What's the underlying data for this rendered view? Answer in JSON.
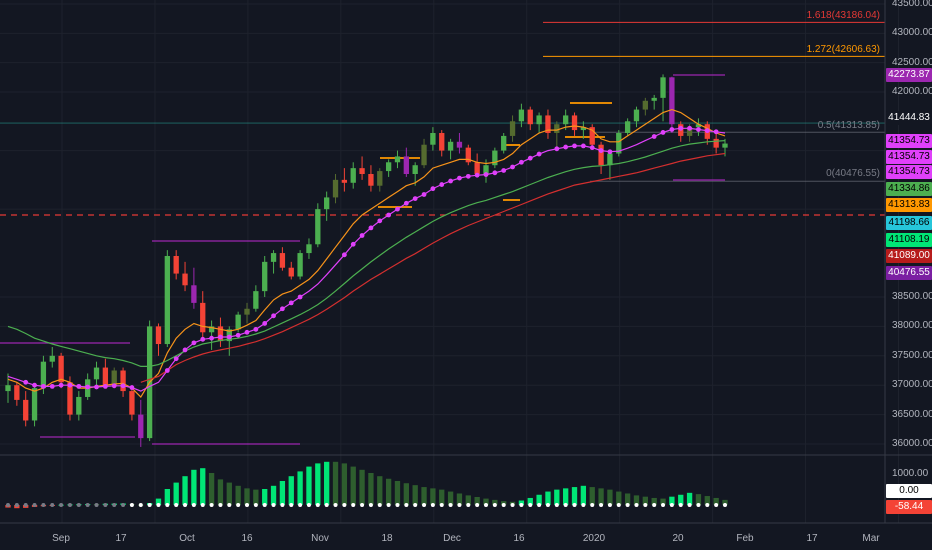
{
  "colors": {
    "background": "#131722",
    "up": "#4caf50",
    "down": "#f44336",
    "up_dim": "#556b2f",
    "ema_fast": "#f7931a",
    "ema_mid": "#e040fb",
    "ema_slow_green": "#4caf50",
    "ema_slow_red": "#d32f2f",
    "guide_magenta": "#9c27b0",
    "fib_red": "#e53935",
    "fib_orange": "#ff9800",
    "dash_red": "#e53935"
  },
  "chart_data": [
    {
      "type": "candlestick",
      "title": "",
      "ylim": [
        35800,
        43500
      ],
      "x_labels": [
        {
          "label": "Sep",
          "x": 0
        },
        {
          "label": "17",
          "x": 14
        },
        {
          "label": "Oct",
          "x": 28
        },
        {
          "label": "16",
          "x": 42
        },
        {
          "label": "Nov",
          "x": 56
        },
        {
          "label": "18",
          "x": 70
        },
        {
          "label": "Dec",
          "x": 84
        },
        {
          "label": "16",
          "x": 98
        },
        {
          "label": "2020",
          "x": 112
        },
        {
          "label": "20",
          "x": 126
        },
        {
          "label": "Feb",
          "x": 140
        },
        {
          "label": "17",
          "x": 154
        },
        {
          "label": "Mar",
          "x": 168
        }
      ],
      "y_ticks": [
        36000,
        36500,
        37000,
        37500,
        38000,
        38500,
        40476.55,
        41089.0,
        41108.19,
        41198.66,
        41313.83,
        41334.86,
        41354.73,
        41444.83,
        42000,
        42273.87,
        42500,
        43000,
        43500
      ],
      "y_tick_labels": [
        "36000.00",
        "36500.00",
        "37000.00",
        "37500.00",
        "38000.00",
        "38500.00",
        "40476.55",
        "41089.00",
        "41108.19",
        "41198.66",
        "41313.83",
        "41334.86",
        "41354.73",
        "41444.83",
        "42000.00",
        "42273.87",
        "42500.00",
        "43000.00",
        "43500.00"
      ],
      "candles": [
        [
          36900,
          37200,
          36700,
          37000
        ],
        [
          37000,
          37050,
          36650,
          36750
        ],
        [
          36750,
          36900,
          36300,
          36400
        ],
        [
          36400,
          37000,
          36300,
          36950
        ],
        [
          36950,
          37500,
          36850,
          37400
        ],
        [
          37400,
          37650,
          37300,
          37500
        ],
        [
          37500,
          37550,
          36950,
          37050
        ],
        [
          37050,
          37150,
          36400,
          36500
        ],
        [
          36500,
          36900,
          36400,
          36800
        ],
        [
          36800,
          37200,
          36750,
          37100
        ],
        [
          37100,
          37400,
          37000,
          37300
        ],
        [
          37300,
          37450,
          36950,
          37000
        ],
        [
          37000,
          37300,
          36950,
          37250
        ],
        [
          37250,
          37300,
          36800,
          36900
        ],
        [
          36900,
          36950,
          36400,
          36500
        ],
        [
          36500,
          36750,
          35950,
          36100
        ],
        [
          36100,
          38100,
          36050,
          38000
        ],
        [
          38000,
          38050,
          37500,
          37700
        ],
        [
          37700,
          39300,
          37650,
          39200
        ],
        [
          39200,
          39300,
          38800,
          38900
        ],
        [
          38900,
          39100,
          38600,
          38700
        ],
        [
          38700,
          39000,
          38300,
          38400
        ],
        [
          38400,
          38600,
          37800,
          37900
        ],
        [
          37900,
          38100,
          37600,
          38000
        ],
        [
          38000,
          38150,
          37650,
          37750
        ],
        [
          37750,
          38000,
          37500,
          37950
        ],
        [
          37950,
          38250,
          37900,
          38200
        ],
        [
          38200,
          38400,
          38050,
          38300
        ],
        [
          38300,
          38700,
          38250,
          38600
        ],
        [
          38600,
          39200,
          38500,
          39100
        ],
        [
          39100,
          39300,
          38900,
          39250
        ],
        [
          39250,
          39350,
          38950,
          39000
        ],
        [
          39000,
          39100,
          38800,
          38850
        ],
        [
          38850,
          39300,
          38800,
          39250
        ],
        [
          39250,
          39500,
          39150,
          39400
        ],
        [
          39400,
          40100,
          39350,
          40000
        ],
        [
          40000,
          40300,
          39800,
          40200
        ],
        [
          40200,
          40600,
          40100,
          40500
        ],
        [
          40500,
          40700,
          40300,
          40450
        ],
        [
          40450,
          40800,
          40350,
          40700
        ],
        [
          40700,
          40900,
          40500,
          40600
        ],
        [
          40600,
          40750,
          40300,
          40400
        ],
        [
          40400,
          40700,
          40300,
          40650
        ],
        [
          40650,
          40850,
          40550,
          40800
        ],
        [
          40800,
          41000,
          40700,
          40900
        ],
        [
          40900,
          41050,
          40550,
          40600
        ],
        [
          40600,
          40800,
          40400,
          40750
        ],
        [
          40750,
          41200,
          40700,
          41100
        ],
        [
          41100,
          41400,
          41000,
          41300
        ],
        [
          41300,
          41350,
          40900,
          41000
        ],
        [
          41000,
          41200,
          40850,
          41150
        ],
        [
          41150,
          41300,
          40950,
          41050
        ],
        [
          41050,
          41100,
          40750,
          40800
        ],
        [
          40800,
          40950,
          40550,
          40600
        ],
        [
          40600,
          40850,
          40450,
          40750
        ],
        [
          40750,
          41050,
          40700,
          41000
        ],
        [
          41000,
          41300,
          40950,
          41250
        ],
        [
          41250,
          41600,
          41150,
          41500
        ],
        [
          41500,
          41800,
          41400,
          41700
        ],
        [
          41700,
          41750,
          41350,
          41450
        ],
        [
          41450,
          41650,
          41300,
          41600
        ],
        [
          41600,
          41700,
          41200,
          41300
        ],
        [
          41300,
          41500,
          41000,
          41450
        ],
        [
          41450,
          41700,
          41350,
          41600
        ],
        [
          41600,
          41650,
          41250,
          41350
        ],
        [
          41350,
          41500,
          41200,
          41400
        ],
        [
          41400,
          41450,
          41050,
          41100
        ],
        [
          41100,
          41150,
          40600,
          40750
        ],
        [
          40750,
          41000,
          40500,
          40950
        ],
        [
          40950,
          41350,
          40900,
          41300
        ],
        [
          41300,
          41550,
          41250,
          41500
        ],
        [
          41500,
          41750,
          41400,
          41700
        ],
        [
          41700,
          41900,
          41600,
          41850
        ],
        [
          41850,
          41950,
          41700,
          41900
        ],
        [
          41900,
          42300,
          41500,
          42250
        ],
        [
          42250,
          42260,
          41300,
          41450
        ],
        [
          41450,
          41500,
          41150,
          41250
        ],
        [
          41250,
          41450,
          41150,
          41400
        ],
        [
          41400,
          41550,
          41250,
          41450
        ],
        [
          41450,
          41500,
          41100,
          41200
        ],
        [
          41200,
          41350,
          40950,
          41050
        ],
        [
          41050,
          41200,
          40900,
          41120
        ]
      ],
      "series": [
        {
          "name": "",
          "color": "#f7931a",
          "values": [
            37100,
            37050,
            36950,
            36900,
            36950,
            37050,
            37100,
            37050,
            36950,
            36950,
            36980,
            37000,
            37020,
            37030,
            36950,
            36800,
            37050,
            37200,
            37550,
            37800,
            37950,
            38050,
            38000,
            37980,
            37950,
            37920,
            37950,
            38020,
            38100,
            38280,
            38450,
            38550,
            38600,
            38700,
            38800,
            38950,
            39150,
            39350,
            39550,
            39750,
            39900,
            40000,
            40100,
            40200,
            40300,
            40400,
            40450,
            40550,
            40700,
            40750,
            40800,
            40850,
            40850,
            40800,
            40780,
            40800,
            40850,
            40950,
            41100,
            41200,
            41300,
            41350,
            41350,
            41400,
            41420,
            41400,
            41350,
            41200,
            41150,
            41150,
            41250,
            41350,
            41450,
            41550,
            41650,
            41700,
            41650,
            41550,
            41450,
            41380,
            41300,
            41250
          ]
        },
        {
          "name": "",
          "color": "#e040fb",
          "values": [
            37150,
            37100,
            37050,
            37000,
            36980,
            36980,
            37000,
            37000,
            36980,
            36970,
            36970,
            36980,
            36990,
            36990,
            36960,
            36900,
            36980,
            37050,
            37250,
            37450,
            37600,
            37720,
            37780,
            37800,
            37820,
            37820,
            37850,
            37900,
            37950,
            38050,
            38180,
            38300,
            38400,
            38500,
            38600,
            38720,
            38880,
            39050,
            39220,
            39400,
            39550,
            39680,
            39800,
            39900,
            40000,
            40100,
            40180,
            40250,
            40350,
            40420,
            40480,
            40530,
            40560,
            40580,
            40590,
            40620,
            40660,
            40720,
            40800,
            40870,
            40940,
            41000,
            41030,
            41060,
            41080,
            41080,
            41050,
            41000,
            40980,
            40990,
            41040,
            41100,
            41170,
            41240,
            41310,
            41360,
            41380,
            41380,
            41360,
            41340,
            41320,
            41300
          ]
        },
        {
          "name": "",
          "color": "#4caf50",
          "values": [
            38000,
            37950,
            37880,
            37800,
            37750,
            37700,
            37660,
            37620,
            37580,
            37540,
            37500,
            37470,
            37450,
            37420,
            37380,
            37320,
            37320,
            37350,
            37420,
            37500,
            37580,
            37650,
            37700,
            37730,
            37760,
            37780,
            37800,
            37830,
            37870,
            37920,
            37990,
            38060,
            38130,
            38200,
            38280,
            38370,
            38480,
            38600,
            38730,
            38860,
            38980,
            39100,
            39210,
            39320,
            39420,
            39520,
            39610,
            39700,
            39790,
            39870,
            39940,
            40000,
            40060,
            40110,
            40150,
            40200,
            40250,
            40300,
            40360,
            40420,
            40480,
            40540,
            40590,
            40640,
            40680,
            40710,
            40730,
            40740,
            40760,
            40780,
            40810,
            40850,
            40890,
            40940,
            40990,
            41040,
            41080,
            41110,
            41130,
            41150,
            41160,
            41170
          ]
        },
        {
          "name": "",
          "color": "#d32f2f",
          "values": [
            null,
            null,
            null,
            null,
            null,
            null,
            null,
            null,
            null,
            null,
            null,
            null,
            null,
            null,
            null,
            37050,
            37100,
            37150,
            37250,
            37350,
            37420,
            37480,
            37530,
            37570,
            37600,
            37630,
            37660,
            37700,
            37740,
            37790,
            37850,
            37910,
            37980,
            38050,
            38120,
            38200,
            38290,
            38390,
            38490,
            38600,
            38700,
            38800,
            38890,
            38980,
            39070,
            39160,
            39240,
            39330,
            39420,
            39500,
            39580,
            39650,
            39720,
            39780,
            39840,
            39900,
            39960,
            40020,
            40080,
            40140,
            40200,
            40260,
            40310,
            40360,
            40410,
            40440,
            40470,
            40500,
            40530,
            40560,
            40590,
            40620,
            40660,
            40700,
            40740,
            40780,
            40820,
            40850,
            40880,
            40910,
            40930,
            40950
          ]
        }
      ],
      "price_tags": [
        {
          "label": "42273.87",
          "value": 42273.87,
          "color": "#9c27b0"
        },
        {
          "label": "41444.83",
          "value": 41444.83,
          "color": "#131722"
        },
        {
          "label": "41354.73",
          "value": 41354.73,
          "color": "#e040fb"
        },
        {
          "label": "41354.73",
          "value": 41354.73,
          "color": "#e040fb"
        },
        {
          "label": "41354.73",
          "value": 41354.73,
          "color": "#e040fb"
        },
        {
          "label": "41334.86",
          "value": 41334.86,
          "color": "#4caf50"
        },
        {
          "label": "41313.83",
          "value": 41313.83,
          "color": "#ff9800"
        },
        {
          "label": "41198.66",
          "value": 41198.66,
          "color": "#26c6da"
        },
        {
          "label": "41108.19",
          "value": 41108.19,
          "color": "#00e676"
        },
        {
          "label": "41089.00",
          "value": 41089.0,
          "color": "#b71c1c"
        },
        {
          "label": "40476.55",
          "value": 40476.55,
          "color": "#7b1fa2"
        }
      ],
      "fib_levels": [
        {
          "label": "1.618(43186.04)",
          "value": 43186.04,
          "color": "#e53935"
        },
        {
          "label": "1.272(42606.63)",
          "value": 42606.63,
          "color": "#ff9800"
        },
        {
          "label": "0.5(41313.85)",
          "value": 41313.85,
          "color": "#787b86"
        },
        {
          "label": "0(40476.55)",
          "value": 40476.55,
          "color": "#787b86"
        }
      ],
      "dashed_level": 39900
    },
    {
      "type": "histogram",
      "title": "",
      "ylim": [
        -200,
        1400
      ],
      "y_tick_labels": [
        "1000.00",
        "0.00",
        "-58.44"
      ],
      "values": [
        -80,
        -100,
        -90,
        -60,
        -40,
        -20,
        10,
        20,
        25,
        30,
        30,
        40,
        45,
        50,
        30,
        10,
        60,
        200,
        500,
        700,
        900,
        1100,
        1150,
        1000,
        800,
        700,
        600,
        520,
        480,
        500,
        600,
        750,
        900,
        1050,
        1200,
        1300,
        1350,
        1350,
        1300,
        1200,
        1100,
        1000,
        900,
        820,
        750,
        680,
        620,
        560,
        520,
        480,
        420,
        360,
        300,
        250,
        200,
        160,
        120,
        100,
        140,
        220,
        320,
        420,
        480,
        520,
        560,
        600,
        560,
        520,
        480,
        420,
        360,
        300,
        260,
        220,
        200,
        260,
        320,
        380,
        340,
        280,
        220,
        160
      ]
    }
  ]
}
